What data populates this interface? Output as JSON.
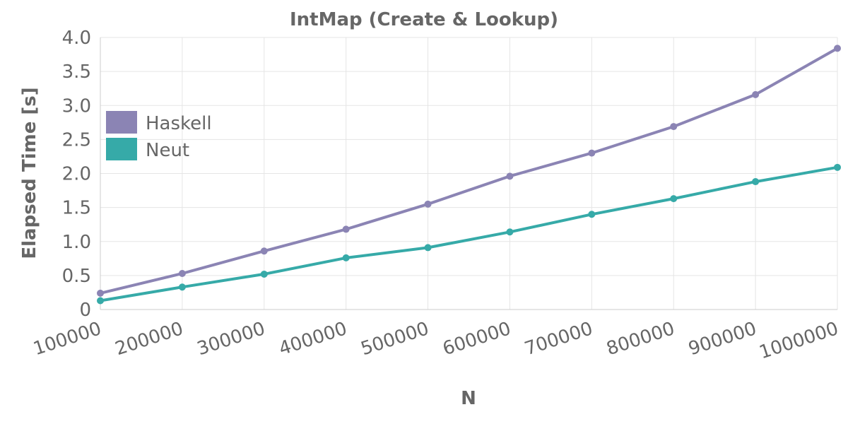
{
  "chart_data": {
    "type": "line",
    "title": "IntMap (Create & Lookup)",
    "xlabel": "N",
    "ylabel": "Elapsed Time [s]",
    "x": [
      100000,
      200000,
      300000,
      400000,
      500000,
      600000,
      700000,
      800000,
      900000,
      1000000
    ],
    "x_tick_labels": [
      "100000",
      "200000",
      "300000",
      "400000",
      "500000",
      "600000",
      "700000",
      "800000",
      "900000",
      "1000000"
    ],
    "ylim": [
      0,
      4.0
    ],
    "y_tick_labels": [
      "0",
      "0.5",
      "1.0",
      "1.5",
      "2.0",
      "2.5",
      "3.0",
      "3.5",
      "4.0"
    ],
    "grid": true,
    "legend_position": "left",
    "series": [
      {
        "name": "Haskell",
        "color": "#8b84b4",
        "values": [
          0.24,
          0.53,
          0.86,
          1.18,
          1.55,
          1.96,
          2.3,
          2.69,
          3.16,
          3.84
        ]
      },
      {
        "name": "Neut",
        "color": "#36aaa8",
        "values": [
          0.13,
          0.33,
          0.52,
          0.76,
          0.91,
          1.14,
          1.4,
          1.63,
          1.88,
          2.09
        ]
      }
    ]
  }
}
